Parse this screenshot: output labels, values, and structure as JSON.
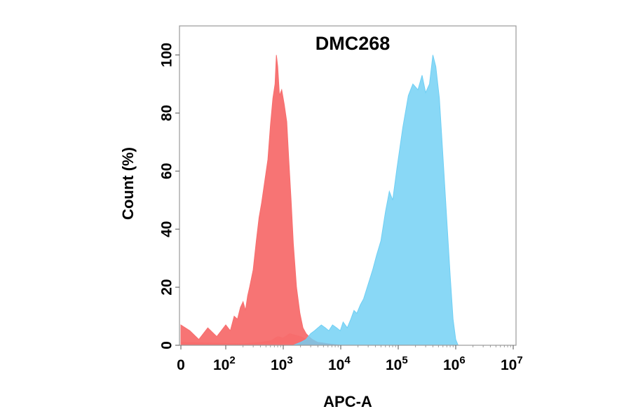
{
  "chart_data": {
    "type": "area",
    "title": "DMC268",
    "xlabel": "APC-A",
    "ylabel": "Count  (%)",
    "x_scale": "log (biexponential display)",
    "xlim": [
      0,
      10000000
    ],
    "ylim": [
      0,
      110
    ],
    "grid": false,
    "legend": "none",
    "x_ticks": [
      {
        "value": 0,
        "base": "0",
        "exp": ""
      },
      {
        "value": 100,
        "base": "10",
        "exp": "2"
      },
      {
        "value": 1000,
        "base": "10",
        "exp": "3"
      },
      {
        "value": 10000,
        "base": "10",
        "exp": "4"
      },
      {
        "value": 100000,
        "base": "10",
        "exp": "5"
      },
      {
        "value": 1000000,
        "base": "10",
        "exp": "6"
      },
      {
        "value": 10000000,
        "base": "10",
        "exp": "7"
      }
    ],
    "y_ticks": [
      {
        "value": 0,
        "label": "0"
      },
      {
        "value": 20,
        "label": "20"
      },
      {
        "value": 40,
        "label": "40"
      },
      {
        "value": 60,
        "label": "60"
      },
      {
        "value": 80,
        "label": "80"
      },
      {
        "value": 100,
        "label": "100"
      }
    ],
    "series": [
      {
        "color": "#f76d6d",
        "points": [
          [
            0,
            7
          ],
          [
            20,
            5
          ],
          [
            40,
            2
          ],
          [
            60,
            6
          ],
          [
            80,
            3
          ],
          [
            100,
            7
          ],
          [
            120,
            5
          ],
          [
            140,
            10
          ],
          [
            160,
            9
          ],
          [
            180,
            13
          ],
          [
            200,
            15
          ],
          [
            220,
            12
          ],
          [
            240,
            17
          ],
          [
            260,
            20
          ],
          [
            300,
            26
          ],
          [
            340,
            36
          ],
          [
            380,
            44
          ],
          [
            420,
            49
          ],
          [
            480,
            57
          ],
          [
            540,
            64
          ],
          [
            600,
            76
          ],
          [
            660,
            85
          ],
          [
            720,
            90
          ],
          [
            760,
            100
          ],
          [
            800,
            96
          ],
          [
            860,
            86
          ],
          [
            940,
            88
          ],
          [
            1040,
            83
          ],
          [
            1150,
            77
          ],
          [
            1250,
            64
          ],
          [
            1370,
            50
          ],
          [
            1500,
            35
          ],
          [
            1700,
            20
          ],
          [
            1950,
            11
          ],
          [
            2200,
            6
          ],
          [
            2500,
            4
          ],
          [
            2800,
            3
          ],
          [
            3200,
            2
          ],
          [
            4000,
            1
          ],
          [
            6000,
            0.5
          ],
          [
            10000,
            0
          ]
        ]
      },
      {
        "color": "#f76d6d",
        "points": [
          [
            0,
            1
          ],
          [
            200,
            0.5
          ],
          [
            400,
            1
          ],
          [
            600,
            1.5
          ],
          [
            800,
            3
          ],
          [
            1000,
            2.5
          ],
          [
            1300,
            4
          ],
          [
            1600,
            3.5
          ],
          [
            2000,
            3
          ],
          [
            2500,
            2
          ],
          [
            3000,
            1.5
          ],
          [
            4000,
            1
          ],
          [
            6000,
            0.5
          ]
        ]
      },
      {
        "color": "#6fcff4",
        "points": [
          [
            1500,
            0
          ],
          [
            2000,
            1
          ],
          [
            2500,
            2
          ],
          [
            3000,
            4
          ],
          [
            3500,
            5
          ],
          [
            4000,
            6
          ],
          [
            4600,
            7
          ],
          [
            5400,
            6
          ],
          [
            6200,
            5
          ],
          [
            7200,
            7
          ],
          [
            8500,
            6
          ],
          [
            9800,
            5
          ],
          [
            11000,
            8
          ],
          [
            13000,
            6
          ],
          [
            15000,
            9
          ],
          [
            17000,
            12
          ],
          [
            19000,
            11
          ],
          [
            22000,
            14
          ],
          [
            25000,
            16
          ],
          [
            30000,
            21
          ],
          [
            36000,
            26
          ],
          [
            42000,
            31
          ],
          [
            50000,
            36
          ],
          [
            60000,
            46
          ],
          [
            70000,
            53
          ],
          [
            80000,
            50
          ],
          [
            95000,
            61
          ],
          [
            120000,
            75
          ],
          [
            150000,
            86
          ],
          [
            180000,
            90
          ],
          [
            220000,
            88
          ],
          [
            260000,
            93
          ],
          [
            300000,
            87
          ],
          [
            350000,
            90
          ],
          [
            400000,
            100
          ],
          [
            450000,
            96
          ],
          [
            520000,
            85
          ],
          [
            600000,
            65
          ],
          [
            700000,
            43
          ],
          [
            800000,
            24
          ],
          [
            900000,
            9
          ],
          [
            1000000,
            2
          ],
          [
            1100000,
            0
          ]
        ]
      }
    ]
  }
}
